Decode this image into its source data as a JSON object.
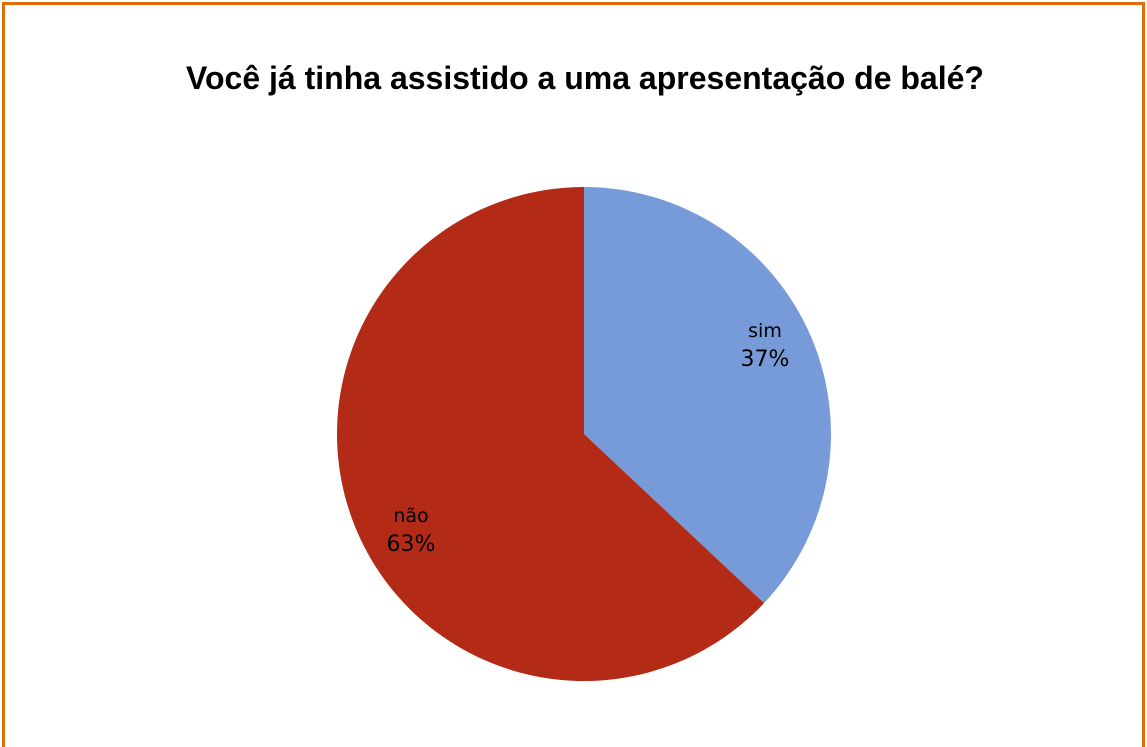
{
  "chart_data": {
    "type": "pie",
    "title": "Você já tinha assistido a uma apresentação de balé?",
    "slices": [
      {
        "label": "sim",
        "value": 37,
        "value_label": "37%",
        "color": "#779bd9"
      },
      {
        "label": "não",
        "value": 63,
        "value_label": "63%",
        "color": "#b32b16"
      }
    ],
    "start": "12 o'clock",
    "direction": "clockwise",
    "legend": "none"
  },
  "frame": {
    "border_color": "#e26b0a"
  }
}
